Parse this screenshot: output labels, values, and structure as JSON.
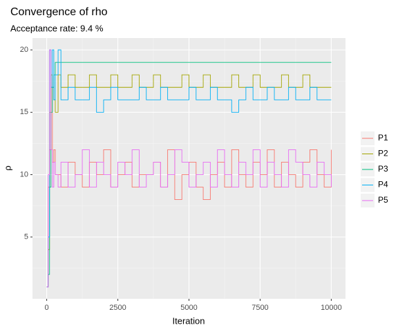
{
  "chart_data": {
    "type": "step",
    "title": "Convergence of rho",
    "subtitle": "Acceptance rate: 9.4 %",
    "x_label": "Iteration",
    "y_label": "ρ",
    "x": [
      0,
      50,
      100,
      150,
      200,
      250,
      300,
      400,
      500,
      750,
      1000,
      1250,
      1500,
      1750,
      2000,
      2250,
      2500,
      2750,
      3000,
      3250,
      3500,
      3750,
      4000,
      4250,
      4500,
      4750,
      5000,
      5250,
      5500,
      5750,
      6000,
      6250,
      6500,
      6750,
      7000,
      7250,
      7500,
      7750,
      8000,
      8250,
      8500,
      8750,
      9000,
      9250,
      9500,
      9750,
      10000
    ],
    "series": [
      {
        "name": "P1",
        "color": "#F8766D",
        "values": [
          1,
          9,
          12,
          17,
          11,
          12,
          10,
          10,
          9,
          11,
          10,
          9,
          11,
          10,
          12,
          9,
          10,
          11,
          9,
          10,
          10,
          11,
          9,
          12,
          8,
          10,
          11,
          9,
          8,
          10,
          11,
          9,
          12,
          10,
          9,
          11,
          10,
          12,
          9,
          11,
          10,
          9,
          11,
          12,
          10,
          9,
          12
        ]
      },
      {
        "name": "P2",
        "color": "#A3A500",
        "values": [
          1,
          4,
          15,
          18,
          17,
          16,
          15,
          18,
          17,
          18,
          17,
          17,
          18,
          17,
          17,
          18,
          17,
          17,
          18,
          17,
          17,
          18,
          17,
          17,
          17,
          18,
          17,
          17,
          18,
          17,
          17,
          17,
          18,
          17,
          17,
          18,
          17,
          17,
          17,
          18,
          17,
          17,
          18,
          17,
          17,
          17,
          17
        ]
      },
      {
        "name": "P3",
        "color": "#00BF7D",
        "values": [
          1,
          2,
          9,
          15,
          17,
          18,
          19,
          19,
          19,
          19,
          19,
          19,
          19,
          19,
          19,
          19,
          19,
          19,
          19,
          19,
          19,
          19,
          19,
          19,
          19,
          19,
          19,
          19,
          19,
          19,
          19,
          19,
          19,
          19,
          19,
          19,
          19,
          19,
          19,
          19,
          19,
          19,
          19,
          19,
          19,
          19,
          19
        ]
      },
      {
        "name": "P4",
        "color": "#00B0F6",
        "values": [
          1,
          5,
          20,
          17,
          20,
          16,
          18,
          20,
          16,
          17,
          16,
          16,
          17,
          15,
          16,
          17,
          16,
          16,
          16,
          17,
          16,
          16,
          17,
          16,
          16,
          16,
          17,
          16,
          16,
          17,
          16,
          16,
          15,
          16,
          17,
          16,
          16,
          17,
          16,
          16,
          17,
          16,
          16,
          17,
          16,
          16,
          16
        ]
      },
      {
        "name": "P5",
        "color": "#E76BF3",
        "values": [
          1,
          10,
          20,
          12,
          9,
          11,
          10,
          9,
          11,
          9,
          10,
          12,
          9,
          11,
          10,
          9,
          11,
          10,
          12,
          9,
          10,
          11,
          9,
          10,
          12,
          11,
          9,
          10,
          11,
          9,
          12,
          10,
          9,
          11,
          10,
          12,
          9,
          11,
          10,
          9,
          12,
          11,
          10,
          9,
          11,
          10,
          9
        ]
      }
    ],
    "xlim": [
      -500,
      10500
    ],
    "xticks": [
      0,
      2500,
      5000,
      7500,
      10000
    ],
    "ylim": [
      0.05,
      20.95
    ],
    "yticks": [
      5,
      10,
      15,
      20
    ],
    "grid": true,
    "legend": "right"
  }
}
